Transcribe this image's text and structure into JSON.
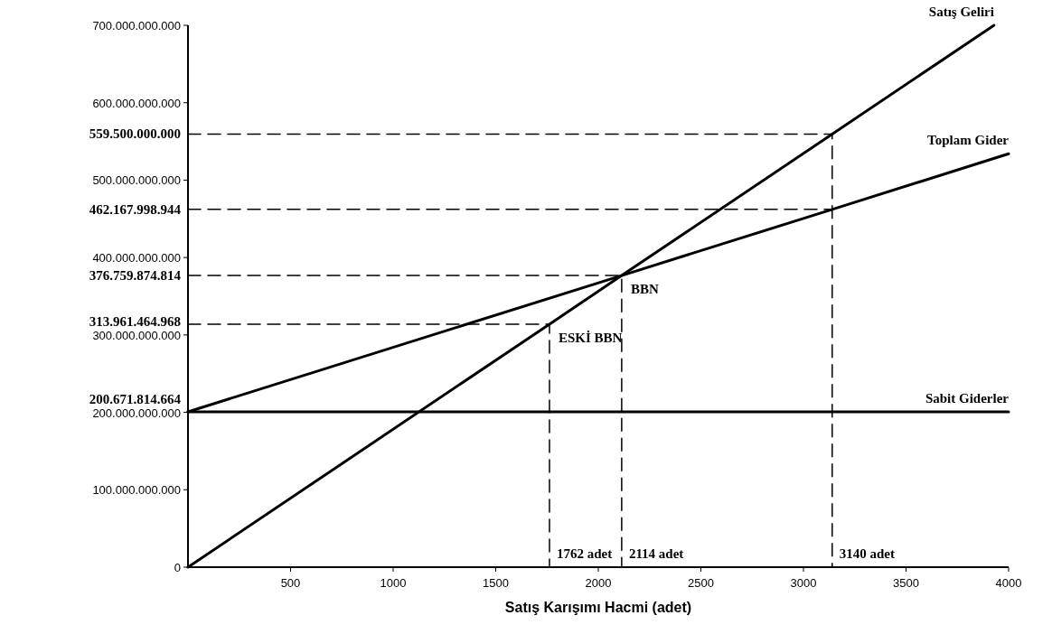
{
  "chart_data": {
    "type": "line",
    "xlabel": "Satış Karışımı Hacmi (adet)",
    "xlim": [
      0,
      4000
    ],
    "xticks": [
      500,
      1000,
      1500,
      2000,
      2500,
      3000,
      3500,
      4000
    ],
    "ylim": [
      0,
      700000000000
    ],
    "yticks": [
      {
        "value": 0,
        "label": "0"
      },
      {
        "value": 100000000000,
        "label": "100.000.000.000"
      },
      {
        "value": 200000000000,
        "label": "200.000.000.000"
      },
      {
        "value": 300000000000,
        "label": "300.000.000.000"
      },
      {
        "value": 400000000000,
        "label": "400.000.000.000"
      },
      {
        "value": 500000000000,
        "label": "500.000.000.000"
      },
      {
        "value": 600000000000,
        "label": "600.000.000.000"
      },
      {
        "value": 700000000000,
        "label": "700.000.000.000"
      }
    ],
    "grid": false,
    "marker": "none",
    "line_style": "solid",
    "series": [
      {
        "name": "Satış Geliri",
        "color": "#000000",
        "x": [
          0,
          1762,
          2114,
          3140,
          3929
        ],
        "values": [
          0,
          313961464968,
          376759874814,
          559500000000,
          700000000000
        ]
      },
      {
        "name": "Toplam Gider",
        "color": "#000000",
        "x": [
          0,
          2114,
          3140,
          4000
        ],
        "values": [
          200671814664,
          376759874814,
          462167998944,
          534000000000
        ]
      },
      {
        "name": "Sabit Giderler",
        "color": "#000000",
        "x": [
          0,
          4000
        ],
        "values": [
          200671814664,
          200671814664
        ]
      },
      {
        "color": "#000000",
        "line_style": "dashed",
        "x": [
          0,
          3140,
          3140
        ],
        "values": [
          559500000000,
          559500000000,
          0
        ]
      },
      {
        "color": "#000000",
        "line_style": "dashed",
        "x": [
          0,
          3140
        ],
        "values": [
          462167998944,
          462167998944
        ]
      },
      {
        "color": "#000000",
        "line_style": "dashed",
        "x": [
          0,
          2114,
          2114
        ],
        "values": [
          376759874814,
          376759874814,
          0
        ]
      },
      {
        "color": "#000000",
        "line_style": "dashed",
        "x": [
          0,
          1762,
          1762
        ],
        "values": [
          313961464968,
          313961464968,
          0
        ]
      }
    ],
    "annotations": [
      {
        "text": "559.500.000.000",
        "x": 0,
        "y": 559500000000
      },
      {
        "text": "462.167.998.944",
        "x": 0,
        "y": 462167998944
      },
      {
        "text": "376.759.874.814",
        "x": 0,
        "y": 376759874814
      },
      {
        "text": "313.961.464.968",
        "x": 0,
        "y": 313961464968
      },
      {
        "text": "200.671.814.664",
        "x": 0,
        "y": 200671814664
      },
      {
        "text": "BBN",
        "x": 2114,
        "y": 376759874814
      },
      {
        "text": "ESKİ BBN",
        "x": 1762,
        "y": 313961464968
      },
      {
        "text": "1762 adet",
        "x": 1762,
        "y": 0
      },
      {
        "text": "2114 adet",
        "x": 2114,
        "y": 0
      },
      {
        "text": "3140 adet",
        "x": 3140,
        "y": 0
      }
    ]
  }
}
